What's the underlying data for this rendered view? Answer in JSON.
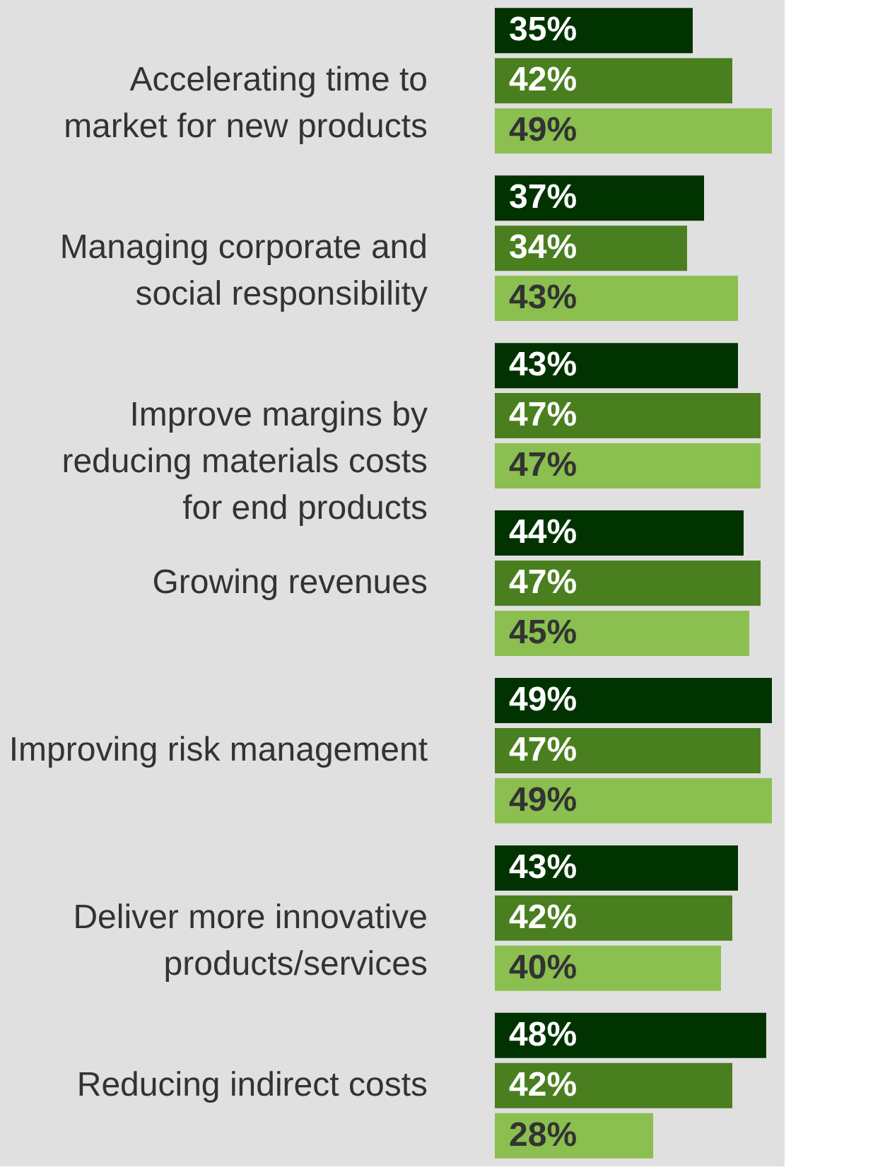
{
  "chart_data": {
    "type": "bar",
    "orientation": "horizontal",
    "categories": [
      "Accelerating time to market for new products",
      "Managing corporate and social responsibility",
      "Improve margins by reducing materials costs for end products",
      "Growing revenues",
      "Improving risk management",
      "Deliver more innovative products/services",
      "Reducing indirect costs"
    ],
    "series": [
      {
        "color": "#003300",
        "values": [
          35,
          37,
          43,
          44,
          49,
          43,
          48
        ],
        "value_labels": [
          "35%",
          "37%",
          "43%",
          "44%",
          "49%",
          "43%",
          "48%"
        ]
      },
      {
        "color": "#4a7f1f",
        "values": [
          42,
          34,
          47,
          47,
          47,
          42,
          42
        ],
        "value_labels": [
          "42%",
          "34%",
          "47%",
          "47%",
          "47%",
          "42%",
          "42%"
        ]
      },
      {
        "color": "#8bbf4f",
        "values": [
          49,
          43,
          47,
          45,
          49,
          40,
          28
        ],
        "value_labels": [
          "49%",
          "43%",
          "47%",
          "45%",
          "49%",
          "40%",
          "28%"
        ]
      }
    ]
  }
}
